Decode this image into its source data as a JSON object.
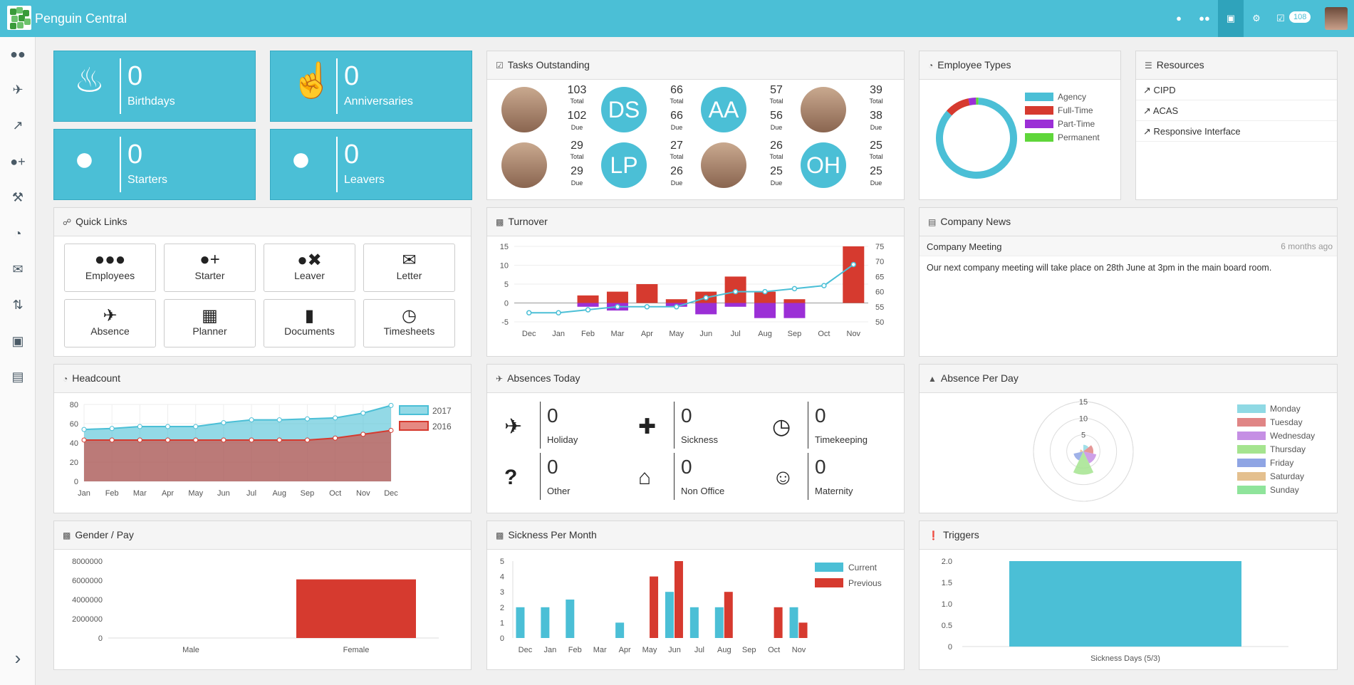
{
  "app": {
    "title": "Penguin Central",
    "notifications": "108"
  },
  "topnav": {
    "icons": [
      "user-icon",
      "users-icon",
      "sitemap-icon",
      "gear-icon",
      "check-square-icon"
    ]
  },
  "sidebar": {
    "icons": [
      "users-icon",
      "plane-icon",
      "line-chart-icon",
      "user-plus-icon",
      "gavel-icon",
      "pie-chart-icon",
      "comments-icon",
      "sort-icon",
      "briefcase-icon",
      "book-icon"
    ],
    "expand": "›"
  },
  "stats": [
    {
      "value": "0",
      "label": "Birthdays",
      "icon": "cake-icon"
    },
    {
      "value": "0",
      "label": "Anniversaries",
      "icon": "thumbs-up-icon"
    },
    {
      "value": "0",
      "label": "Starters",
      "icon": "user-plus-icon"
    },
    {
      "value": "0",
      "label": "Leavers",
      "icon": "user-times-icon"
    }
  ],
  "tasks": {
    "title": "Tasks Outstanding",
    "total_label": "Total",
    "due_label": "Due",
    "items": [
      {
        "initials": "",
        "total": "103",
        "due": "102"
      },
      {
        "initials": "DS",
        "total": "66",
        "due": "66"
      },
      {
        "initials": "AA",
        "total": "57",
        "due": "56"
      },
      {
        "initials": "",
        "total": "39",
        "due": "38"
      },
      {
        "initials": "",
        "total": "29",
        "due": "29"
      },
      {
        "initials": "LP",
        "total": "27",
        "due": "26"
      },
      {
        "initials": "",
        "total": "26",
        "due": "25"
      },
      {
        "initials": "OH",
        "total": "25",
        "due": "25"
      }
    ]
  },
  "employee_types": {
    "title": "Employee Types",
    "legend": [
      {
        "label": "Agency",
        "color": "#4bbfd6",
        "value": 86
      },
      {
        "label": "Full-Time",
        "color": "#d63a2f",
        "value": 10
      },
      {
        "label": "Part-Time",
        "color": "#9b2fd6",
        "value": 3
      },
      {
        "label": "Permanent",
        "color": "#5fd63a",
        "value": 1
      }
    ]
  },
  "resources": {
    "title": "Resources",
    "links": [
      "CIPD",
      "ACAS",
      "Responsive Interface"
    ]
  },
  "quick_links": {
    "title": "Quick Links",
    "items": [
      {
        "label": "Employees",
        "icon": "users-icon"
      },
      {
        "label": "Starter",
        "icon": "user-plus-icon"
      },
      {
        "label": "Leaver",
        "icon": "user-times-icon"
      },
      {
        "label": "Letter",
        "icon": "envelope-icon"
      },
      {
        "label": "Absence",
        "icon": "plane-icon"
      },
      {
        "label": "Planner",
        "icon": "calendar-icon"
      },
      {
        "label": "Documents",
        "icon": "file-icon"
      },
      {
        "label": "Timesheets",
        "icon": "clock-icon"
      }
    ]
  },
  "company_news": {
    "title": "Company News",
    "item_title": "Company Meeting",
    "item_time": "6 months ago",
    "body": "Our next company meeting will take place on 28th June at 3pm in the main board room."
  },
  "absences_today": {
    "title": "Absences Today",
    "items": [
      {
        "value": "0",
        "label": "Holiday",
        "icon": "plane-icon"
      },
      {
        "value": "0",
        "label": "Sickness",
        "icon": "ambulance-icon"
      },
      {
        "value": "0",
        "label": "Timekeeping",
        "icon": "clock-icon"
      },
      {
        "value": "0",
        "label": "Other",
        "icon": "question-icon"
      },
      {
        "value": "0",
        "label": "Non Office",
        "icon": "home-icon"
      },
      {
        "value": "0",
        "label": "Maternity",
        "icon": "child-icon"
      }
    ]
  },
  "panels": {
    "turnover": "Turnover",
    "headcount": "Headcount",
    "absence_per_day": "Absence Per Day",
    "gender_pay": "Gender / Pay",
    "sickness_per_month": "Sickness Per Month",
    "triggers": "Triggers"
  },
  "chart_data": [
    {
      "id": "turnover",
      "type": "bar",
      "title": "Turnover",
      "categories": [
        "Dec",
        "Jan",
        "Feb",
        "Mar",
        "Apr",
        "May",
        "Jun",
        "Jul",
        "Aug",
        "Sep",
        "Oct",
        "Nov"
      ],
      "series": [
        {
          "name": "Starters",
          "color": "#d63a2f",
          "values": [
            0,
            0,
            2,
            3,
            5,
            1,
            3,
            7,
            3,
            1,
            0,
            15
          ]
        },
        {
          "name": "Leavers",
          "color": "#9b2fd6",
          "values": [
            0,
            0,
            -1,
            -2,
            0,
            -1,
            -3,
            -1,
            -4,
            -4,
            0,
            0
          ]
        },
        {
          "name": "Headcount",
          "type": "line",
          "color": "#4bbfd6",
          "axis": "right",
          "values": [
            53,
            53,
            54,
            55,
            55,
            55,
            58,
            60,
            60,
            61,
            62,
            69
          ]
        }
      ],
      "ylim": [
        -5,
        15
      ],
      "yticks": [
        -5,
        0,
        5,
        10,
        15
      ],
      "y2lim": [
        50,
        75
      ],
      "y2ticks": [
        50,
        55,
        60,
        65,
        70,
        75
      ]
    },
    {
      "id": "headcount",
      "type": "area",
      "title": "Headcount",
      "categories": [
        "Jan",
        "Feb",
        "Mar",
        "Apr",
        "May",
        "Jun",
        "Jul",
        "Aug",
        "Sep",
        "Oct",
        "Nov",
        "Dec"
      ],
      "series": [
        {
          "name": "2017",
          "color": "#4bbfd6",
          "values": [
            54,
            55,
            57,
            57,
            57,
            61,
            64,
            64,
            65,
            66,
            71,
            79
          ]
        },
        {
          "name": "2016",
          "color": "#d63a2f",
          "values": [
            43,
            43,
            43,
            43,
            43,
            43,
            43,
            43,
            43,
            45,
            49,
            53
          ]
        }
      ],
      "ylim": [
        0,
        80
      ],
      "yticks": [
        0,
        20,
        40,
        60,
        80
      ]
    },
    {
      "id": "absence_per_day",
      "type": "polar",
      "title": "Absence Per Day",
      "categories": [
        "Monday",
        "Tuesday",
        "Wednesday",
        "Thursday",
        "Friday",
        "Saturday",
        "Sunday"
      ],
      "colors": [
        "#8fd9e4",
        "#e08585",
        "#c58fe4",
        "#a5e48f",
        "#8fa5e4",
        "#e4c08f",
        "#8fe49b"
      ],
      "values": [
        2,
        3,
        4,
        7,
        3,
        1,
        0
      ],
      "rticks": [
        5,
        10,
        15
      ],
      "rmax": 15
    },
    {
      "id": "gender_pay",
      "type": "bar",
      "title": "Gender / Pay",
      "categories": [
        "Male",
        "Female"
      ],
      "values": [
        0,
        6100000
      ],
      "color": "#d63a2f",
      "ylim": [
        0,
        8000000
      ],
      "yticks": [
        0,
        2000000,
        4000000,
        6000000,
        8000000
      ]
    },
    {
      "id": "sickness_per_month",
      "type": "bar",
      "title": "Sickness Per Month",
      "categories": [
        "Dec",
        "Jan",
        "Feb",
        "Mar",
        "Apr",
        "May",
        "Jun",
        "Jul",
        "Aug",
        "Sep",
        "Oct",
        "Nov"
      ],
      "series": [
        {
          "name": "Current",
          "color": "#4bbfd6",
          "values": [
            2,
            2,
            2.5,
            0,
            1,
            0,
            3,
            2,
            2,
            0,
            0,
            2
          ]
        },
        {
          "name": "Previous",
          "color": "#d63a2f",
          "values": [
            0,
            0,
            0,
            0,
            0,
            4,
            5,
            0,
            3,
            0,
            2,
            1
          ]
        }
      ],
      "ylim": [
        0,
        5
      ],
      "yticks": [
        0,
        1,
        2,
        3,
        4,
        5
      ]
    },
    {
      "id": "triggers",
      "type": "bar",
      "title": "Triggers",
      "categories": [
        "Sickness Days (5/3)"
      ],
      "values": [
        2
      ],
      "color": "#4bbfd6",
      "ylim": [
        0,
        2
      ],
      "yticks": [
        "0",
        "0.5",
        "1.0",
        "1.5",
        "2.0"
      ]
    }
  ]
}
